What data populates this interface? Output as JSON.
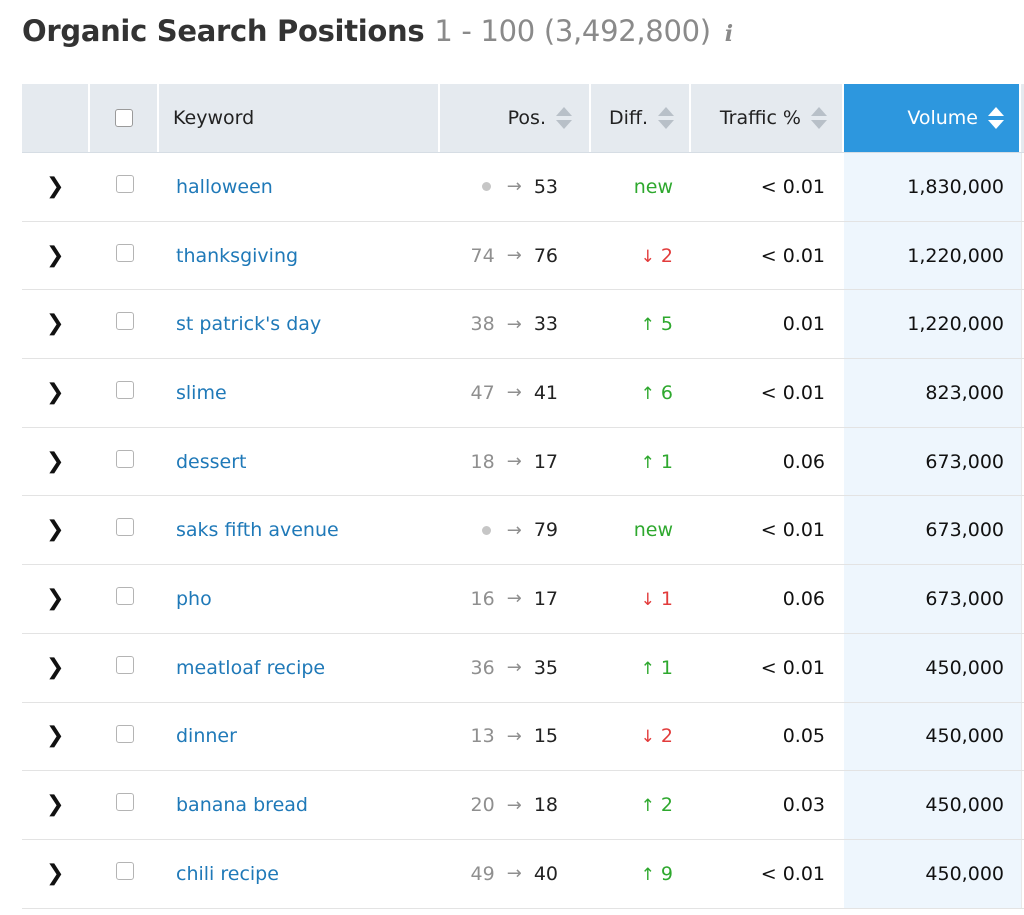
{
  "title": {
    "main": "Organic Search Positions",
    "range": "1 - 100 (3,492,800)",
    "info_glyph": "i"
  },
  "columns": {
    "keyword": "Keyword",
    "pos": "Pos.",
    "diff": "Diff.",
    "traffic": "Traffic %",
    "volume": "Volume"
  },
  "sorted_column": "volume",
  "colors": {
    "header_bg": "#e5eaef",
    "active_header_bg": "#2d97de",
    "link": "#1f79b8",
    "up": "#2ea82e",
    "down": "#e23b3b"
  },
  "rows": [
    {
      "keyword": "halloween",
      "prev": null,
      "arrow": "→",
      "pos": "53",
      "diff_type": "new",
      "diff_arrow": "",
      "diff": "new",
      "traffic": "< 0.01",
      "volume": "1,830,000"
    },
    {
      "keyword": "thanksgiving",
      "prev": "74",
      "arrow": "→",
      "pos": "76",
      "diff_type": "down",
      "diff_arrow": "↓",
      "diff": "2",
      "traffic": "< 0.01",
      "volume": "1,220,000"
    },
    {
      "keyword": "st patrick's day",
      "prev": "38",
      "arrow": "→",
      "pos": "33",
      "diff_type": "up",
      "diff_arrow": "↑",
      "diff": "5",
      "traffic": "0.01",
      "volume": "1,220,000"
    },
    {
      "keyword": "slime",
      "prev": "47",
      "arrow": "→",
      "pos": "41",
      "diff_type": "up",
      "diff_arrow": "↑",
      "diff": "6",
      "traffic": "< 0.01",
      "volume": "823,000"
    },
    {
      "keyword": "dessert",
      "prev": "18",
      "arrow": "→",
      "pos": "17",
      "diff_type": "up",
      "diff_arrow": "↑",
      "diff": "1",
      "traffic": "0.06",
      "volume": "673,000"
    },
    {
      "keyword": "saks fifth avenue",
      "prev": null,
      "arrow": "→",
      "pos": "79",
      "diff_type": "new",
      "diff_arrow": "",
      "diff": "new",
      "traffic": "< 0.01",
      "volume": "673,000"
    },
    {
      "keyword": "pho",
      "prev": "16",
      "arrow": "→",
      "pos": "17",
      "diff_type": "down",
      "diff_arrow": "↓",
      "diff": "1",
      "traffic": "0.06",
      "volume": "673,000"
    },
    {
      "keyword": "meatloaf recipe",
      "prev": "36",
      "arrow": "→",
      "pos": "35",
      "diff_type": "up",
      "diff_arrow": "↑",
      "diff": "1",
      "traffic": "< 0.01",
      "volume": "450,000"
    },
    {
      "keyword": "dinner",
      "prev": "13",
      "arrow": "→",
      "pos": "15",
      "diff_type": "down",
      "diff_arrow": "↓",
      "diff": "2",
      "traffic": "0.05",
      "volume": "450,000"
    },
    {
      "keyword": "banana bread",
      "prev": "20",
      "arrow": "→",
      "pos": "18",
      "diff_type": "up",
      "diff_arrow": "↑",
      "diff": "2",
      "traffic": "0.03",
      "volume": "450,000"
    },
    {
      "keyword": "chili recipe",
      "prev": "49",
      "arrow": "→",
      "pos": "40",
      "diff_type": "up",
      "diff_arrow": "↑",
      "diff": "9",
      "traffic": "< 0.01",
      "volume": "450,000"
    }
  ]
}
